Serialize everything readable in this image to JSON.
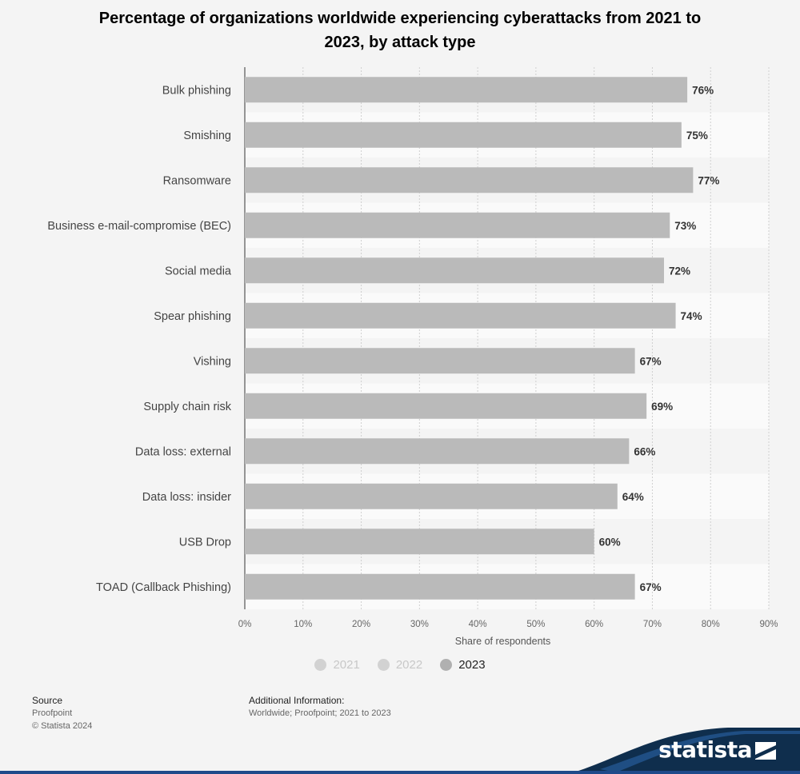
{
  "title": "Percentage of organizations worldwide experiencing cyberattacks from 2021 to 2023, by attack type",
  "chart_data": {
    "type": "bar",
    "orientation": "horizontal",
    "title": "Percentage of organizations worldwide experiencing cyberattacks from 2021 to 2023, by attack type",
    "categories": [
      "Bulk phishing",
      "Smishing",
      "Ransomware",
      "Business e-mail-compromise (BEC)",
      "Social media",
      "Spear phishing",
      "Vishing",
      "Supply chain risk",
      "Data loss: external",
      "Data loss: insider",
      "USB Drop",
      "TOAD (Callback Phishing)"
    ],
    "series": [
      {
        "name": "2023",
        "values": [
          76,
          75,
          77,
          73,
          72,
          74,
          67,
          69,
          66,
          64,
          60,
          67
        ]
      }
    ],
    "value_labels": [
      "76%",
      "75%",
      "77%",
      "73%",
      "72%",
      "74%",
      "67%",
      "69%",
      "66%",
      "64%",
      "60%",
      "67%"
    ],
    "xlabel": "Share of respondents",
    "ylabel": "",
    "xlim": [
      0,
      90
    ],
    "x_ticks": [
      "0%",
      "10%",
      "20%",
      "30%",
      "40%",
      "50%",
      "60%",
      "70%",
      "80%",
      "90%"
    ],
    "grid": true,
    "legend_position": "bottom",
    "bar_color": "#bababa"
  },
  "legend": [
    {
      "label": "2021",
      "active": false
    },
    {
      "label": "2022",
      "active": false
    },
    {
      "label": "2023",
      "active": true
    }
  ],
  "footer": {
    "source_heading": "Source",
    "source_name": "Proofpoint",
    "copyright": "© Statista 2024",
    "info_heading": "Additional Information:",
    "info_text": "Worldwide; Proofpoint; 2021 to 2023"
  },
  "brand": {
    "name": "statista",
    "color": "#0f2e4d"
  }
}
